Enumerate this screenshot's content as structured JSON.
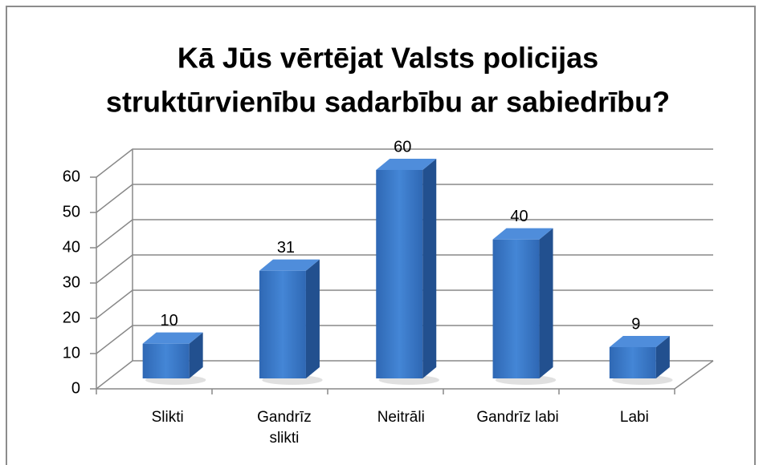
{
  "chart_data": {
    "type": "bar3d",
    "title": [
      "Kā Jūs vērtējat Valsts policijas",
      "struktūrvienību sadarbību ar sabiedrību?"
    ],
    "categories": [
      "Slikti",
      "Gandrīz slikti",
      "Neitrāli",
      "Gandrīz labi",
      "Labi"
    ],
    "values": [
      10,
      31,
      60,
      40,
      9
    ],
    "color": "#3a78c8",
    "ylim": [
      0,
      60
    ],
    "yticks": [
      0,
      10,
      20,
      30,
      40,
      50,
      60
    ],
    "grid": true
  }
}
